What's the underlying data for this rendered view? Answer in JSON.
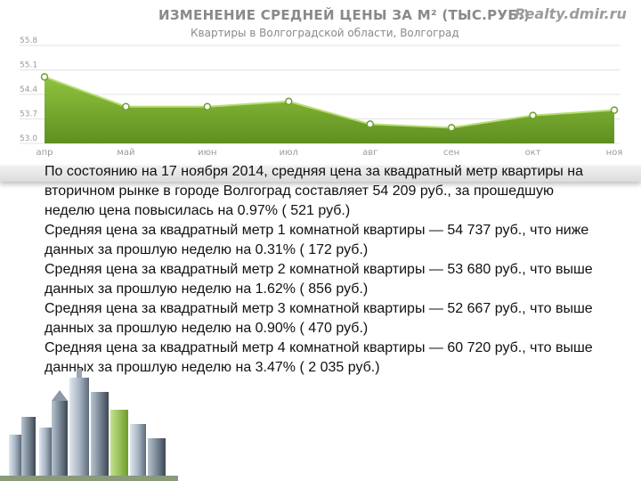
{
  "chart_data": {
    "type": "area",
    "title": "ИЗМЕНЕНИЕ СРЕДНЕЙ ЦЕНЫ ЗА М² (ТЫС.РУБ.)",
    "subtitle": "Квартиры в Волгоградской области, Волгоград",
    "categories": [
      "апр",
      "май",
      "июн",
      "июл",
      "авг",
      "сен",
      "окт",
      "ноя"
    ],
    "values": [
      54.9,
      54.05,
      54.05,
      54.2,
      53.55,
      53.45,
      53.8,
      53.95
    ],
    "y_ticks": [
      "55.8",
      "55.1",
      "54.4",
      "53.7",
      "53.0"
    ],
    "ylim": [
      53.0,
      55.8
    ],
    "grid": true,
    "colors": {
      "fill_top": "#8fc33d",
      "fill_bottom": "#5f8f22",
      "line": "#b6dd73",
      "marker": "#6f9e2c"
    }
  },
  "brand": "Realty.dmir.ru",
  "body_text": "По состоянию на 17 ноября 2014, средняя цена за квадратный метр квартиры на вторичном рынке в городе Волгоград составляет 54 209 руб., за прошедшую неделю цена повысилась на 0.97% ( 521 руб.)\nСредняя цена за квадратный метр 1 комнатной квартиры — 54 737 руб., что ниже данных за прошлую неделю на 0.31% ( 172 руб.)\nСредняя цена за квадратный метр 2 комнатной квартиры — 53 680 руб., что выше данных за прошлую неделю на 1.62% ( 856 руб.)\nСредняя цена за квадратный метр 3 комнатной квартиры — 52 667 руб., что выше данных за прошлую неделю на 0.90% ( 470 руб.)\nСредняя цена за квадратный метр 4 комнатной квартиры — 60 720 руб., что выше данных за прошлую неделю на 3.47% ( 2 035 руб.)"
}
